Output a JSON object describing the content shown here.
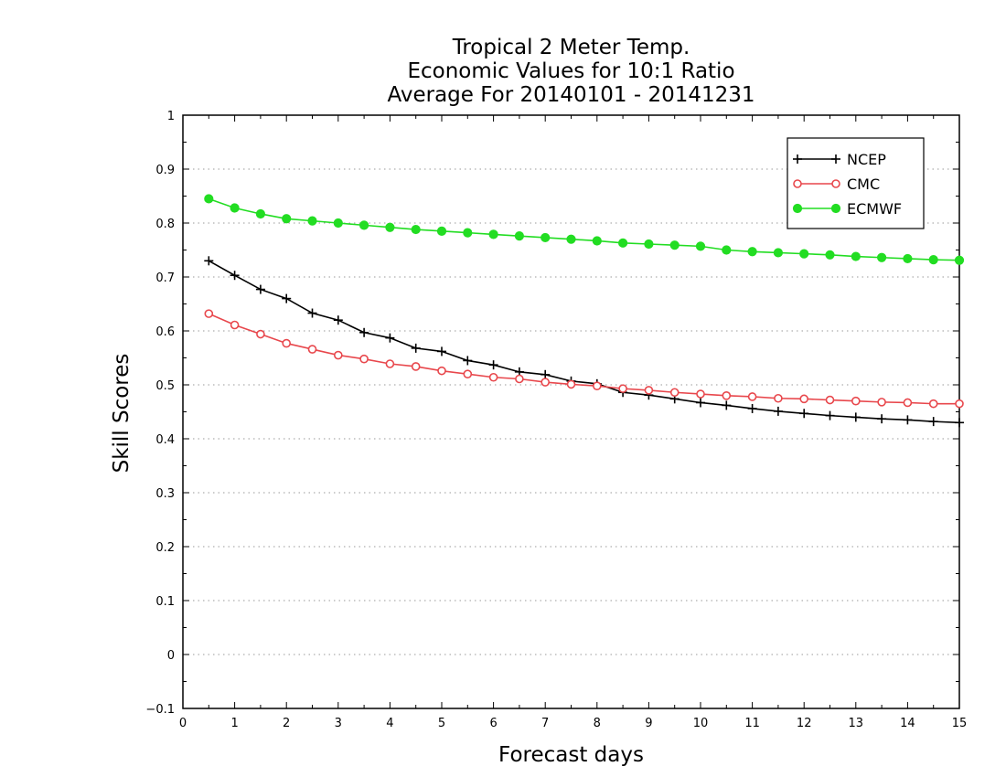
{
  "chart_data": {
    "type": "line",
    "title": [
      "Tropical 2 Meter Temp.",
      "Economic Values for 10:1 Ratio",
      "Average For 20140101 - 20141231"
    ],
    "xlabel": "Forecast days",
    "ylabel": "Skill Scores",
    "xlim": [
      0,
      15
    ],
    "ylim": [
      -0.1,
      1
    ],
    "xticks": [
      0,
      1,
      2,
      3,
      4,
      5,
      6,
      7,
      8,
      9,
      10,
      11,
      12,
      13,
      14,
      15
    ],
    "yticks": [
      -0.1,
      0,
      0.1,
      0.2,
      0.3,
      0.4,
      0.5,
      0.6,
      0.7,
      0.8,
      0.9,
      1
    ],
    "ytick_labels": [
      "−0.1",
      "0",
      "0.1",
      "0.2",
      "0.3",
      "0.4",
      "0.5",
      "0.6",
      "0.7",
      "0.8",
      "0.9",
      "1"
    ],
    "grid": "horizontal dotted",
    "legend_position": "top-right",
    "x": [
      0.5,
      1,
      1.5,
      2,
      2.5,
      3,
      3.5,
      4,
      4.5,
      5,
      5.5,
      6,
      6.5,
      7,
      7.5,
      8,
      8.5,
      9,
      9.5,
      10,
      10.5,
      11,
      11.5,
      12,
      12.5,
      13,
      13.5,
      14,
      14.5,
      15
    ],
    "series": [
      {
        "name": "NCEP",
        "color": "#000000",
        "marker": "plus",
        "values": [
          0.73,
          0.703,
          0.677,
          0.66,
          0.633,
          0.62,
          0.597,
          0.587,
          0.568,
          0.562,
          0.545,
          0.537,
          0.524,
          0.519,
          0.507,
          0.502,
          0.486,
          0.481,
          0.474,
          0.467,
          0.462,
          0.456,
          0.451,
          0.447,
          0.443,
          0.44,
          0.437,
          0.435,
          0.432,
          0.43
        ]
      },
      {
        "name": "CMC",
        "color": "#e8474c",
        "marker": "open-circle",
        "values": [
          0.632,
          0.611,
          0.594,
          0.577,
          0.566,
          0.555,
          0.548,
          0.539,
          0.534,
          0.526,
          0.52,
          0.514,
          0.511,
          0.505,
          0.501,
          0.498,
          0.493,
          0.49,
          0.486,
          0.483,
          0.48,
          0.478,
          0.475,
          0.474,
          0.472,
          0.47,
          0.468,
          0.467,
          0.465,
          0.465
        ]
      },
      {
        "name": "ECMWF",
        "color": "#22dd22",
        "marker": "filled-circle",
        "values": [
          0.845,
          0.828,
          0.817,
          0.808,
          0.804,
          0.8,
          0.796,
          0.792,
          0.788,
          0.785,
          0.782,
          0.779,
          0.776,
          0.773,
          0.77,
          0.767,
          0.763,
          0.761,
          0.759,
          0.757,
          0.75,
          0.747,
          0.745,
          0.743,
          0.741,
          0.738,
          0.736,
          0.734,
          0.732,
          0.731
        ]
      }
    ]
  }
}
